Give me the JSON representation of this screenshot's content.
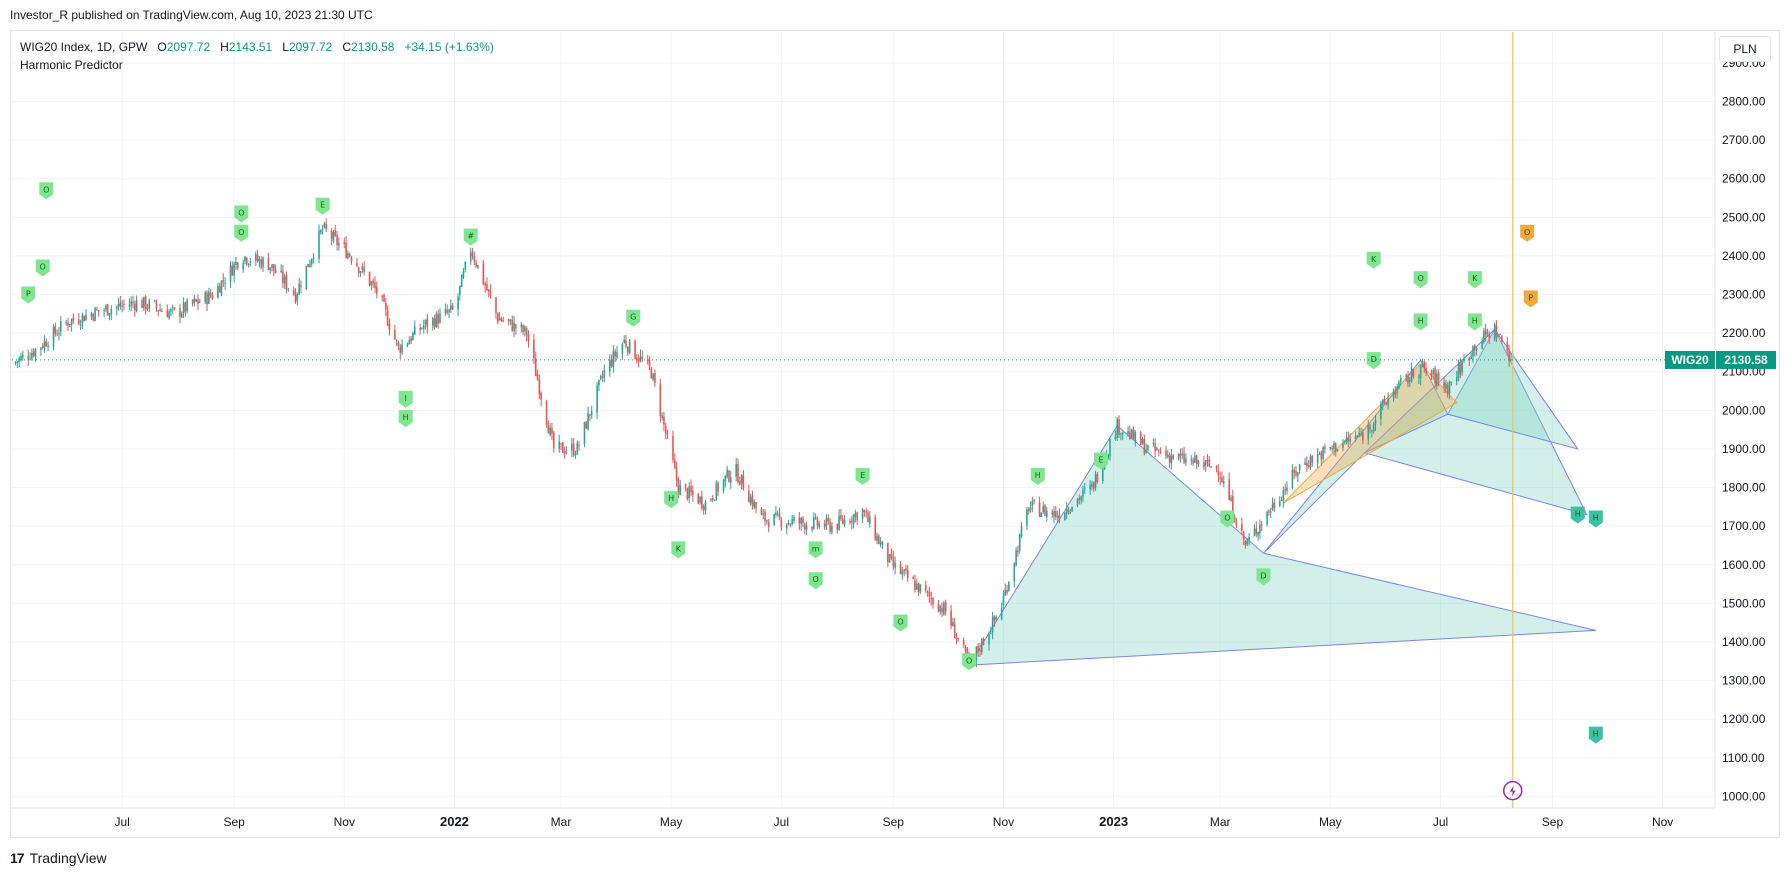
{
  "header": {
    "publisher_line": "Investor_R published on TradingView.com, Aug 10, 2023 21:30 UTC"
  },
  "legend": {
    "symbol": "WIG20 Index, 1D, GPW",
    "open_label": "O",
    "open": "2097.72",
    "high_label": "H",
    "high": "2143.51",
    "low_label": "L",
    "low": "2097.72",
    "close_label": "C",
    "close": "2130.58",
    "change": "+34.15 (+1.63%)",
    "indicator": "Harmonic Predictor"
  },
  "currency": "PLN",
  "price_tag": {
    "symbol": "WIG20",
    "price": "2130.58",
    "value": 2130.58
  },
  "footer": {
    "brand": "TradingView",
    "logo": "17"
  },
  "colors": {
    "up": "#26a69a",
    "down": "#ef5350",
    "pattern_fill": "#7fd3c0",
    "pattern_line": "#7b83eb",
    "label_green": "#7de68e",
    "label_orange": "#f4a63b",
    "marker_line": "#f5c14b",
    "tag_bg": "#089981",
    "event_icon": "#9c27b0"
  },
  "chart_data": {
    "type": "candlestick",
    "title": "WIG20 Index, 1D, GPW",
    "yaxis_ticks": [
      "2900.00",
      "2800.00",
      "2700.00",
      "2600.00",
      "2500.00",
      "2400.00",
      "2300.00",
      "2200.00",
      "2100.00",
      "2000.00",
      "1900.00",
      "1800.00",
      "1700.00",
      "1600.00",
      "1500.00",
      "1400.00",
      "1300.00",
      "1200.00",
      "1100.00",
      "1000.00"
    ],
    "ylim": [
      970,
      2980
    ],
    "xaxis_ticks": [
      {
        "label": "Jul",
        "year": false
      },
      {
        "label": "Sep",
        "year": false
      },
      {
        "label": "Nov",
        "year": false
      },
      {
        "label": "2022",
        "year": true
      },
      {
        "label": "Mar",
        "year": false
      },
      {
        "label": "May",
        "year": false
      },
      {
        "label": "Jul",
        "year": false
      },
      {
        "label": "Sep",
        "year": false
      },
      {
        "label": "Nov",
        "year": false
      },
      {
        "label": "2023",
        "year": true
      },
      {
        "label": "Mar",
        "year": false
      },
      {
        "label": "May",
        "year": false
      },
      {
        "label": "Jul",
        "year": false
      },
      {
        "label": "Sep",
        "year": false
      },
      {
        "label": "Nov",
        "year": false
      }
    ],
    "x_range": [
      "2021-05-01",
      "2023-11-30"
    ],
    "x_ticks_dates": [
      "2021-07-01",
      "2021-09-01",
      "2021-11-01",
      "2022-01-01",
      "2022-03-01",
      "2022-05-01",
      "2022-07-01",
      "2022-09-01",
      "2022-11-01",
      "2023-01-01",
      "2023-03-01",
      "2023-05-01",
      "2023-07-01",
      "2023-09-01",
      "2023-11-01"
    ],
    "price_path": [
      [
        "2021-05-01",
        2120
      ],
      [
        "2021-05-15",
        2160
      ],
      [
        "2021-06-01",
        2230
      ],
      [
        "2021-06-20",
        2260
      ],
      [
        "2021-07-10",
        2280
      ],
      [
        "2021-07-30",
        2250
      ],
      [
        "2021-08-20",
        2300
      ],
      [
        "2021-09-05",
        2400
      ],
      [
        "2021-09-20",
        2380
      ],
      [
        "2021-10-05",
        2300
      ],
      [
        "2021-10-20",
        2470
      ],
      [
        "2021-11-05",
        2400
      ],
      [
        "2021-11-20",
        2300
      ],
      [
        "2021-12-01",
        2160
      ],
      [
        "2021-12-15",
        2220
      ],
      [
        "2022-01-01",
        2260
      ],
      [
        "2022-01-10",
        2420
      ],
      [
        "2022-01-25",
        2240
      ],
      [
        "2022-02-10",
        2200
      ],
      [
        "2022-02-25",
        1900
      ],
      [
        "2022-03-10",
        1900
      ],
      [
        "2022-03-25",
        2100
      ],
      [
        "2022-04-05",
        2180
      ],
      [
        "2022-04-20",
        2100
      ],
      [
        "2022-05-05",
        1800
      ],
      [
        "2022-05-20",
        1760
      ],
      [
        "2022-06-05",
        1850
      ],
      [
        "2022-06-20",
        1720
      ],
      [
        "2022-07-10",
        1710
      ],
      [
        "2022-07-30",
        1700
      ],
      [
        "2022-08-15",
        1740
      ],
      [
        "2022-08-31",
        1600
      ],
      [
        "2022-09-15",
        1540
      ],
      [
        "2022-09-30",
        1480
      ],
      [
        "2022-10-13",
        1340
      ],
      [
        "2022-10-30",
        1480
      ],
      [
        "2022-11-15",
        1750
      ],
      [
        "2022-12-01",
        1730
      ],
      [
        "2022-12-20",
        1800
      ],
      [
        "2023-01-03",
        1960
      ],
      [
        "2023-01-20",
        1900
      ],
      [
        "2023-02-10",
        1870
      ],
      [
        "2023-02-28",
        1850
      ],
      [
        "2023-03-15",
        1650
      ],
      [
        "2023-03-31",
        1760
      ],
      [
        "2023-04-15",
        1860
      ],
      [
        "2023-05-01",
        1900
      ],
      [
        "2023-05-20",
        1940
      ],
      [
        "2023-06-05",
        2050
      ],
      [
        "2023-06-20",
        2110
      ],
      [
        "2023-07-05",
        2060
      ],
      [
        "2023-07-20",
        2170
      ],
      [
        "2023-07-31",
        2210
      ],
      [
        "2023-08-10",
        2130
      ]
    ],
    "last_close": 2130.58,
    "current_date": "2023-08-10"
  }
}
